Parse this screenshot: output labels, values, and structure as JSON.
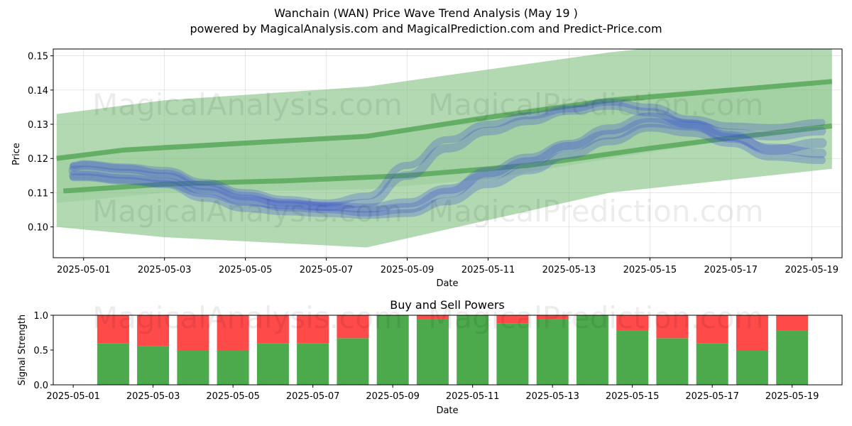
{
  "header": {
    "title": "Wanchain (WAN) Price Wave Trend Analysis (May 19 )",
    "subtitle": "powered by MagicalAnalysis.com and MagicalPrediction.com and Predict-Price.com"
  },
  "watermarks": [
    "MagicalAnalysis.com",
    "MagicalPrediction.com"
  ],
  "colors": {
    "band": "#7fbf7f",
    "trend": "#4a9e4a",
    "wave": "#3a4fd0",
    "buy": "#4caa4c",
    "sell": "#ff4a4a",
    "grid": "#b0b0b0"
  },
  "chart_data": [
    {
      "type": "line",
      "xlabel": "Date",
      "ylabel": "Price",
      "x_ticks": [
        "2025-05-01",
        "2025-05-03",
        "2025-05-05",
        "2025-05-07",
        "2025-05-09",
        "2025-05-11",
        "2025-05-13",
        "2025-05-15",
        "2025-05-17",
        "2025-05-19"
      ],
      "y_ticks": [
        0.1,
        0.11,
        0.12,
        0.13,
        0.14,
        0.15
      ],
      "ylim": [
        0.091,
        0.152
      ],
      "xlim": [
        "2025-04-30T06:00",
        "2025-05-19T18:00"
      ],
      "grid": true,
      "band": {
        "x": [
          "2025-04-30T08:00",
          "2025-05-03",
          "2025-05-08",
          "2025-05-11",
          "2025-05-14",
          "2025-05-19T12:00"
        ],
        "upper": [
          0.133,
          0.137,
          0.141,
          0.146,
          0.151,
          0.158
        ],
        "lower": [
          0.1,
          0.097,
          0.094,
          0.102,
          0.11,
          0.117
        ],
        "upper2": [
          0.121,
          0.124,
          0.127,
          0.133,
          0.138,
          0.143
        ],
        "lower2": [
          0.107,
          0.11,
          0.111,
          0.114,
          0.12,
          0.13
        ]
      },
      "trend_lines": [
        {
          "x": [
            "2025-04-30T08:00",
            "2025-05-02",
            "2025-05-05",
            "2025-05-08",
            "2025-05-11",
            "2025-05-14",
            "2025-05-17",
            "2025-05-19T12:00"
          ],
          "y": [
            0.12,
            0.1225,
            0.1245,
            0.1265,
            0.132,
            0.137,
            0.14,
            0.1425
          ]
        },
        {
          "x": [
            "2025-04-30T12:00",
            "2025-05-03",
            "2025-05-06",
            "2025-05-09",
            "2025-05-12",
            "2025-05-15",
            "2025-05-17",
            "2025-05-19T12:00"
          ],
          "y": [
            0.1105,
            0.1125,
            0.1135,
            0.115,
            0.118,
            0.123,
            0.126,
            0.1295
          ]
        }
      ],
      "series": [
        {
          "x": [
            "2025-04-30T18:00",
            "2025-05-01",
            "2025-05-02",
            "2025-05-03",
            "2025-05-04",
            "2025-05-05",
            "2025-05-06",
            "2025-05-07",
            "2025-05-08",
            "2025-05-09",
            "2025-05-10",
            "2025-05-11",
            "2025-05-12",
            "2025-05-13",
            "2025-05-14",
            "2025-05-15",
            "2025-05-16",
            "2025-05-17",
            "2025-05-18",
            "2025-05-19T06:00"
          ],
          "y": [
            0.1165,
            0.1165,
            0.1155,
            0.1145,
            0.111,
            0.108,
            0.106,
            0.1055,
            0.1045,
            0.1055,
            0.11,
            0.116,
            0.12,
            0.124,
            0.1285,
            0.132,
            0.13,
            0.1265,
            0.1225,
            0.1245
          ]
        },
        {
          "x": [
            "2025-04-30T18:00",
            "2025-05-01",
            "2025-05-02",
            "2025-05-03",
            "2025-05-04",
            "2025-05-05",
            "2025-05-06",
            "2025-05-07",
            "2025-05-08",
            "2025-05-09",
            "2025-05-10",
            "2025-05-11",
            "2025-05-12",
            "2025-05-13",
            "2025-05-14",
            "2025-05-15",
            "2025-05-16",
            "2025-05-17",
            "2025-05-18",
            "2025-05-19T06:00"
          ],
          "y": [
            0.115,
            0.115,
            0.114,
            0.113,
            0.11,
            0.1075,
            0.1065,
            0.106,
            0.1055,
            0.107,
            0.111,
            0.115,
            0.119,
            0.1235,
            0.127,
            0.1305,
            0.1295,
            0.126,
            0.123,
            0.1215
          ]
        },
        {
          "x": [
            "2025-04-30T18:00",
            "2025-05-01",
            "2025-05-02",
            "2025-05-03",
            "2025-05-04",
            "2025-05-05",
            "2025-05-06",
            "2025-05-07",
            "2025-05-08",
            "2025-05-09",
            "2025-05-10",
            "2025-05-11",
            "2025-05-12",
            "2025-05-13",
            "2025-05-14",
            "2025-05-15",
            "2025-05-16",
            "2025-05-17",
            "2025-05-18",
            "2025-05-19T06:00"
          ],
          "y": [
            0.1175,
            0.118,
            0.117,
            0.1155,
            0.112,
            0.109,
            0.107,
            0.106,
            0.107,
            0.115,
            0.123,
            0.128,
            0.131,
            0.134,
            0.1355,
            0.1335,
            0.13,
            0.1275,
            0.1265,
            0.128
          ]
        },
        {
          "x": [
            "2025-04-30T18:00",
            "2025-05-01",
            "2025-05-02",
            "2025-05-03",
            "2025-05-04",
            "2025-05-05",
            "2025-05-06",
            "2025-05-07",
            "2025-05-08",
            "2025-05-09",
            "2025-05-10",
            "2025-05-11",
            "2025-05-12",
            "2025-05-13",
            "2025-05-14",
            "2025-05-15",
            "2025-05-16",
            "2025-05-17",
            "2025-05-18",
            "2025-05-19T06:00"
          ],
          "y": [
            0.1145,
            0.1145,
            0.1135,
            0.1125,
            0.1085,
            0.1055,
            0.1045,
            0.104,
            0.1035,
            0.104,
            0.1075,
            0.1125,
            0.1165,
            0.121,
            0.125,
            0.129,
            0.1275,
            0.1245,
            0.1205,
            0.1195
          ]
        },
        {
          "x": [
            "2025-04-30T18:00",
            "2025-05-01",
            "2025-05-02",
            "2025-05-03",
            "2025-05-04",
            "2025-05-05",
            "2025-05-06",
            "2025-05-07",
            "2025-05-08",
            "2025-05-09",
            "2025-05-10",
            "2025-05-11",
            "2025-05-12",
            "2025-05-13",
            "2025-05-14",
            "2025-05-15",
            "2025-05-16",
            "2025-05-17",
            "2025-05-18",
            "2025-05-19T06:00"
          ],
          "y": [
            0.118,
            0.1185,
            0.1175,
            0.1165,
            0.113,
            0.11,
            0.108,
            0.107,
            0.109,
            0.118,
            0.1255,
            0.13,
            0.1325,
            0.1345,
            0.1365,
            0.135,
            0.1315,
            0.1295,
            0.129,
            0.1305
          ]
        }
      ]
    },
    {
      "type": "bar",
      "title": "Buy and Sell Powers",
      "xlabel": "Date",
      "ylabel": "Signal Strength",
      "ylim": [
        0,
        1.0
      ],
      "y_ticks": [
        "0.0",
        "0.5",
        "1.0"
      ],
      "x_ticks": [
        "2025-05-01",
        "2025-05-03",
        "2025-05-05",
        "2025-05-07",
        "2025-05-09",
        "2025-05-11",
        "2025-05-13",
        "2025-05-15",
        "2025-05-17",
        "2025-05-19"
      ],
      "xlim": [
        "2025-04-30T12:00",
        "2025-05-20T06:00"
      ],
      "categories": [
        "2025-05-02",
        "2025-05-03",
        "2025-05-04",
        "2025-05-05",
        "2025-05-06",
        "2025-05-07",
        "2025-05-08",
        "2025-05-09",
        "2025-05-10",
        "2025-05-11",
        "2025-05-12",
        "2025-05-13",
        "2025-05-14",
        "2025-05-15",
        "2025-05-16",
        "2025-05-17",
        "2025-05-18",
        "2025-05-19"
      ],
      "series": [
        {
          "name": "Buy",
          "values": [
            0.6,
            0.56,
            0.5,
            0.5,
            0.6,
            0.6,
            0.67,
            1.0,
            0.94,
            1.0,
            0.88,
            0.94,
            1.0,
            0.78,
            0.67,
            0.6,
            0.5,
            0.78
          ]
        },
        {
          "name": "Sell",
          "values": [
            0.4,
            0.44,
            0.5,
            0.5,
            0.4,
            0.4,
            0.33,
            0.0,
            0.06,
            0.0,
            0.12,
            0.06,
            0.0,
            0.22,
            0.33,
            0.4,
            0.5,
            0.22
          ]
        }
      ]
    }
  ]
}
